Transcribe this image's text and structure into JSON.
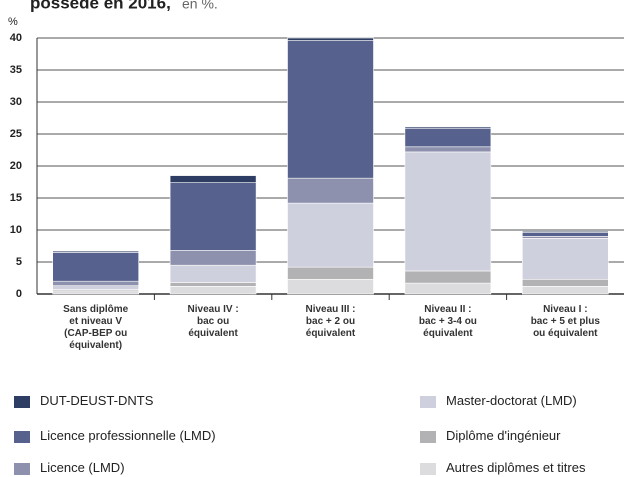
{
  "chart_data": {
    "type": "stacked_bar",
    "title": "possédé en 2016,",
    "subtitle": "en %.",
    "y_unit": "%",
    "categories": [
      "Sans diplôme\net niveau V\n(CAP-BEP ou\néquivalent)",
      "Niveau IV :\nbac ou\néquivalent",
      "Niveau III :\nbac + 2 ou\néquivalent",
      "Niveau II :\nbac + 3-4 ou\néquivalent",
      "Niveau I :\nbac + 5 et plus\nou équivalent"
    ],
    "series": [
      {
        "name": "Autres diplômes et titres",
        "color": "#dcdcde",
        "values": [
          0.5,
          1.2,
          2.3,
          1.7,
          1.2
        ]
      },
      {
        "name": "Diplôme d'ingénieur",
        "color": "#b2b2b4",
        "values": [
          0.2,
          0.6,
          1.9,
          1.9,
          1.1
        ]
      },
      {
        "name": "Master-doctorat (LMD)",
        "color": "#cfd0de",
        "values": [
          0.6,
          2.7,
          10,
          18.6,
          6.4
        ]
      },
      {
        "name": "Licence (LMD)",
        "color": "#8e91ad",
        "values": [
          0.7,
          2.3,
          3.9,
          0.8,
          0.3
        ]
      },
      {
        "name": "Licence professionnelle (LMD)",
        "color": "#56618d",
        "values": [
          4.5,
          10.6,
          21.5,
          2.9,
          0.6
        ]
      },
      {
        "name": "DUT-DEUST-DNTS",
        "color": "#2e3d63",
        "values": [
          0.2,
          1.1,
          0.4,
          0.2,
          0.2
        ]
      }
    ],
    "ylim": [
      0,
      40
    ],
    "yticks": [
      0,
      5,
      10,
      15,
      20,
      25,
      30,
      35,
      40
    ],
    "grid": true
  }
}
